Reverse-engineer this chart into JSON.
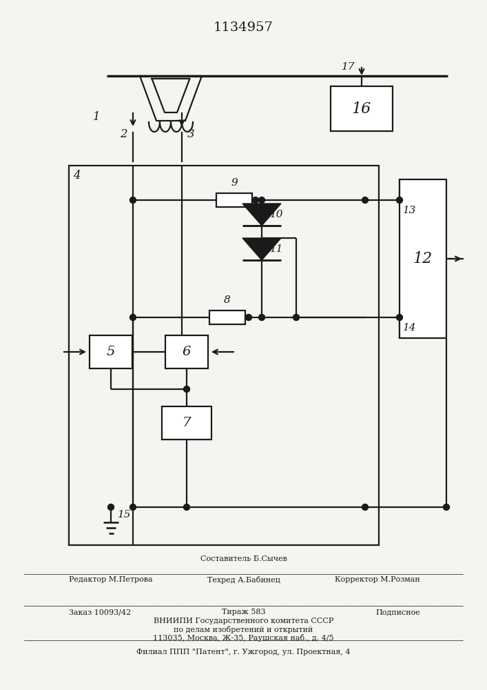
{
  "title": "1134957",
  "bg_color": "#f5f4f0",
  "line_color": "#1a1a1a",
  "footer": {
    "line1_left": "Редактор М.Петрова",
    "line1_center": "Техред А.Бабинец",
    "line1_right": "Корректор М.Розман",
    "line1_center_top": "Составитель Б.Сычев",
    "line2_left": "Заказ 10093/42",
    "line2_center": "Тираж 583",
    "line2_right": "Подписное",
    "line3": "ВНИИПИ Государственного комитета СССР",
    "line4": "по делам изобретений и открытий",
    "line5": "113035, Москва, Ж-35, Раушская наб., д. 4/5",
    "line6": "Филиал ППП \"Патент\", г. Ужгород, ул. Проектная, 4"
  }
}
